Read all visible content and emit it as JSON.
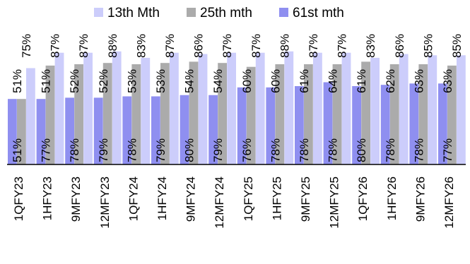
{
  "chart_data": {
    "type": "bar",
    "categories": [
      "1QFY23",
      "1HFY23",
      "9MFY23",
      "12MFY23",
      "1QFY24",
      "1HFY24",
      "9MFY24",
      "12MFY24",
      "1QFY25",
      "1HFY25",
      "9MFY25",
      "12MFY25",
      "1QFY26",
      "1HFY26",
      "9MFY26",
      "12MFY26"
    ],
    "series": [
      {
        "name": "13th Mth",
        "color": "#cccdfb",
        "values": [
          75,
          87,
          87,
          88,
          83,
          87,
          86,
          87,
          87,
          88,
          87,
          87,
          83,
          86,
          85,
          85
        ],
        "labels": [
          "75%",
          "87%",
          "87%",
          "88%",
          "83%",
          "87%",
          "86%",
          "87%",
          "87%",
          "88%",
          "87%",
          "87%",
          "83%",
          "86%",
          "85%",
          "85%"
        ]
      },
      {
        "name": "25th mth",
        "color": "#ababab",
        "values": [
          51,
          77,
          78,
          79,
          78,
          79,
          80,
          79,
          76,
          78,
          78,
          78,
          80,
          78,
          78,
          77
        ],
        "labels": [
          "51%",
          "77%",
          "78%",
          "79%",
          "78%",
          "79%",
          "80%",
          "79%",
          "76%",
          "78%",
          "78%",
          "78%",
          "80%",
          "78%",
          "78%",
          "77%"
        ]
      },
      {
        "name": "61st mth",
        "color": "#8f8ff0",
        "values": [
          51,
          51,
          52,
          52,
          53,
          53,
          54,
          54,
          60,
          60,
          61,
          64,
          61,
          62,
          63,
          63
        ],
        "labels": [
          "51%",
          "51%",
          "52%",
          "52%",
          "53%",
          "53%",
          "54%",
          "54%",
          "60%",
          "60%",
          "61%",
          "64%",
          "61%",
          "62%",
          "63%",
          "63%"
        ]
      }
    ],
    "legend": {
      "position": "top"
    },
    "ylim": [
      0,
      100
    ],
    "grid": false
  }
}
